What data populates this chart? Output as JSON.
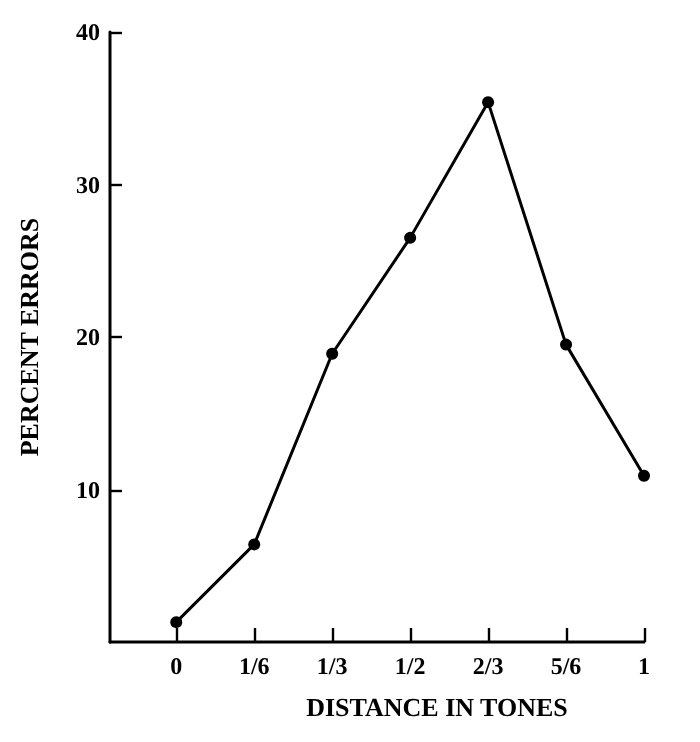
{
  "chart_data": {
    "type": "line",
    "xlabel": "DISTANCE IN TONES",
    "ylabel": "PERCENT ERRORS",
    "categories": [
      "0",
      "1/6",
      "1/3",
      "1/2",
      "2/3",
      "5/6",
      "1"
    ],
    "series": [
      {
        "color": "#000000",
        "values": [
          1.3,
          6.4,
          18.9,
          26.5,
          35.4,
          19.5,
          10.9
        ]
      }
    ],
    "ylim": [
      0,
      40
    ],
    "yticks": [
      10,
      20,
      30,
      40
    ],
    "marker": "circle",
    "line_style": "solid"
  }
}
